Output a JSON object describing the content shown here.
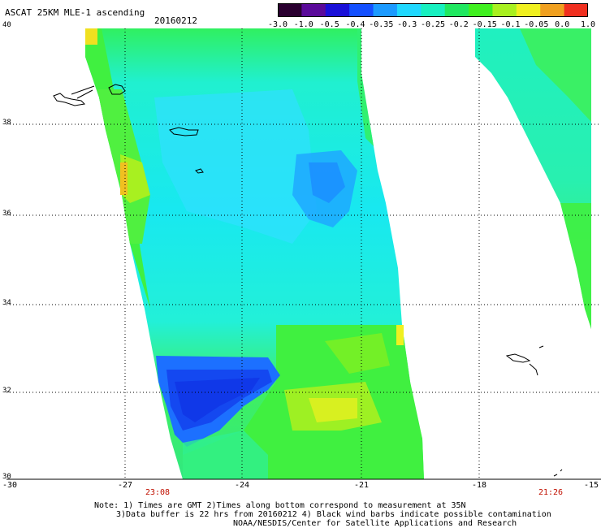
{
  "title": "ASCAT 25KM MLE-1 ascending",
  "date": "20160212",
  "colorbar": {
    "labels": [
      "-3.0",
      "-1.0",
      "-0.5",
      "-0.4",
      "-0.35",
      "-0.3",
      "-0.25",
      "-0.2",
      "-0.15",
      "-0.1",
      "-0.05",
      "0.0",
      "1.0"
    ],
    "colors": [
      "#2a0030",
      "#5a0a9a",
      "#1a10d8",
      "#1450ff",
      "#1c9aff",
      "#20d8ff",
      "#18f0c0",
      "#20e860",
      "#40f020",
      "#a8f020",
      "#f0f020",
      "#f0a020",
      "#f03020"
    ]
  },
  "lat_labels": [
    "40",
    "38",
    "36",
    "34",
    "32",
    "30"
  ],
  "lon_labels": [
    "-30",
    "-27",
    "-24",
    "-21",
    "-18",
    "-15"
  ],
  "times": [
    "23:08",
    "21:26"
  ],
  "notes": {
    "line1": "Note: 1) Times are GMT 2)Times along bottom correspond to measurement at 35N",
    "line2": "3)Data buffer is 22 hrs from 20160212 4) Black wind barbs indicate possible contamination",
    "line3": "NOAA/NESDIS/Center for Satellite Applications and Research"
  }
}
